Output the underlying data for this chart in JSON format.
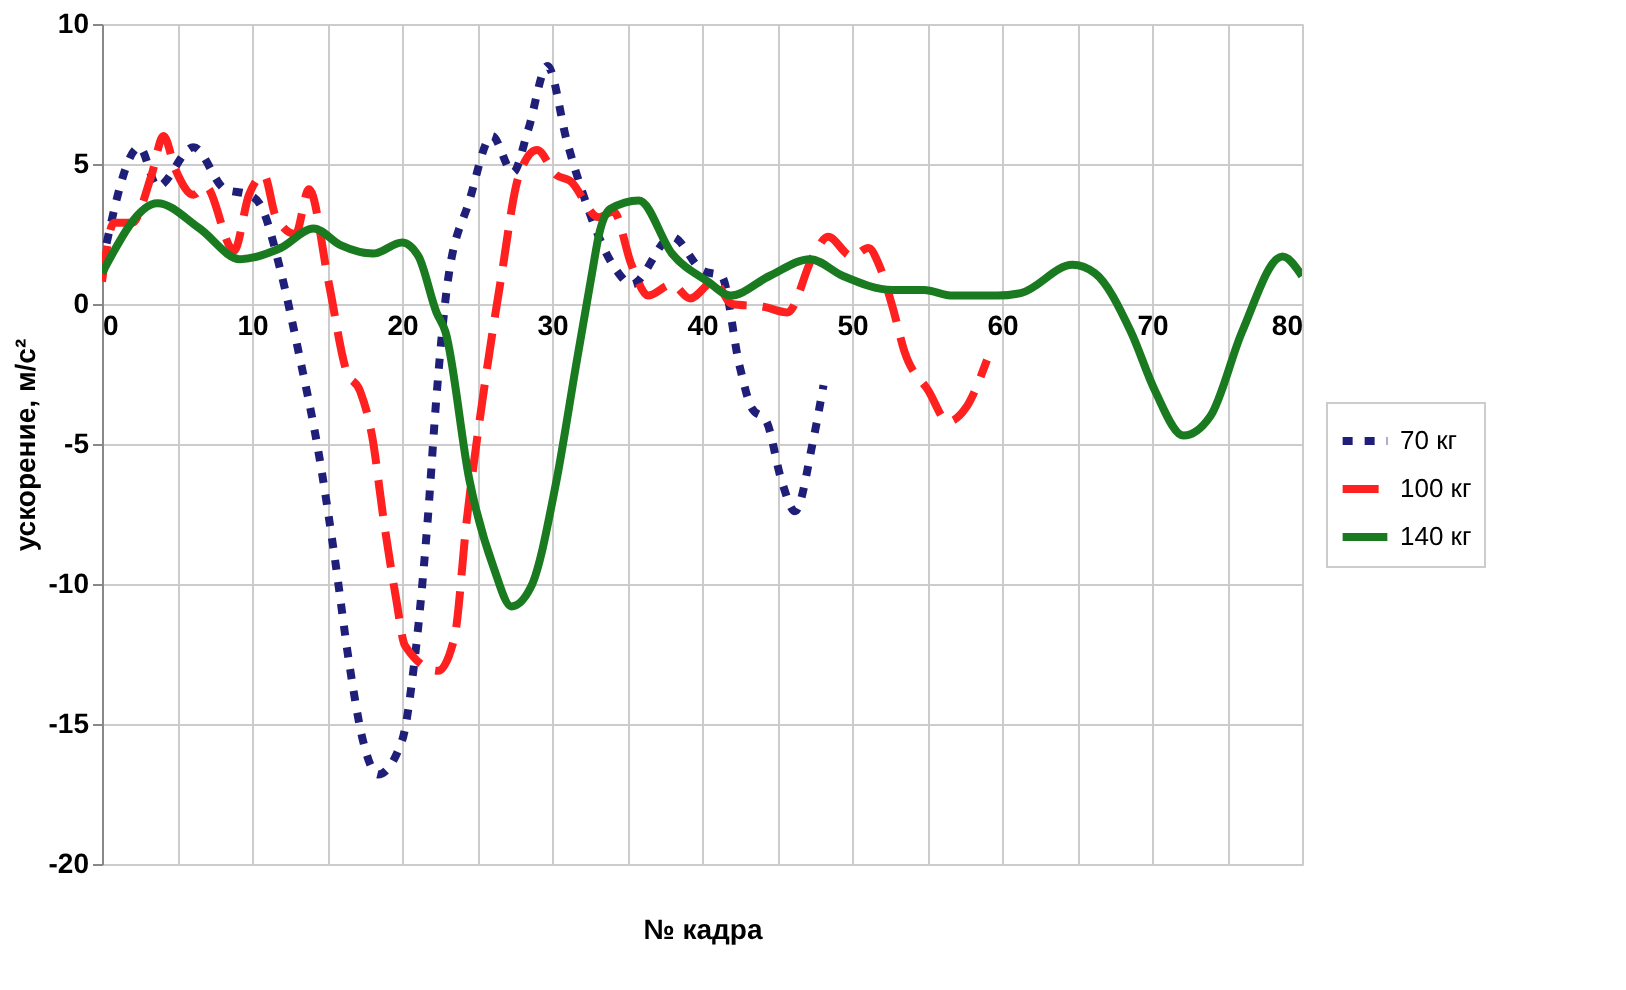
{
  "chart_data": {
    "type": "line",
    "xlabel": "№ кадра",
    "ylabel": "ускорение, м/с²",
    "xlim": [
      0,
      80
    ],
    "ylim": [
      -20,
      10
    ],
    "xticks": [
      0,
      {
        "value": 5,
        "label": null
      },
      10,
      {
        "value": 15,
        "label": null
      },
      20,
      {
        "value": 25,
        "label": null
      },
      30,
      {
        "value": 35,
        "label": null
      },
      40,
      {
        "value": 45,
        "label": null
      },
      50,
      {
        "value": 55,
        "label": null
      },
      60,
      {
        "value": 65,
        "label": null
      },
      70,
      {
        "value": 75,
        "label": null
      },
      80
    ],
    "yticks": [
      -20,
      -15,
      -10,
      -5,
      0,
      5,
      10
    ],
    "grid": true,
    "legend": "right",
    "marker": "none",
    "series": [
      {
        "name": "70 кг",
        "color": "#1f1f7a",
        "line_style": "dotted",
        "x": [
          0,
          2.5,
          3.7,
          6.1,
          8.2,
          9.8,
          10.6,
          11.9,
          13.1,
          14.5,
          15.5,
          16.5,
          17.4,
          18.4,
          20,
          20.8,
          21.7,
          22.3,
          23,
          24.5,
          26,
          27.4,
          28.4,
          29.7,
          31,
          31.9,
          34.3,
          35.3,
          38,
          40,
          41.3,
          42.5,
          43.3,
          44.3,
          45.3,
          46.2,
          47.4,
          48.1
        ],
        "values": [
          1.4,
          5.6,
          4.2,
          5.6,
          4.1,
          3.9,
          3.5,
          1.2,
          -1.7,
          -5.5,
          -9,
          -12.9,
          -15.6,
          -16.8,
          -15.6,
          -12.9,
          -7.8,
          -3.3,
          0.6,
          3.7,
          6,
          4.7,
          6.2,
          8.5,
          5.8,
          4.2,
          1.2,
          0.7,
          2.4,
          1.2,
          1,
          -2.2,
          -3.7,
          -4.2,
          -6.3,
          -7.4,
          -4.9,
          -2.9
        ]
      },
      {
        "name": "100 кг",
        "color": "#ff2020",
        "line_style": "dashed",
        "x": [
          0,
          0.8,
          2,
          3.3,
          4.1,
          4.9,
          6.1,
          6.9,
          8.8,
          9.8,
          10.8,
          11.6,
          12.9,
          13.8,
          15.1,
          16.3,
          17.2,
          18,
          18.8,
          19.6,
          20.2,
          22.4,
          23.5,
          24.3,
          25.4,
          26.6,
          27.8,
          29,
          30.3,
          31.2,
          33.1,
          34.1,
          35.3,
          36.4,
          38,
          39.2,
          40.8,
          42,
          44.1,
          45.7,
          47.4,
          48.4,
          50,
          51.1,
          51.8,
          52.7,
          53.5,
          55.1,
          56.4,
          57.6,
          59
        ],
        "values": [
          0.8,
          2.9,
          2.9,
          4.6,
          6,
          4.8,
          3.9,
          4.2,
          1.9,
          3.9,
          4.6,
          3.1,
          2.5,
          4.1,
          0.8,
          -2.4,
          -3.1,
          -4.7,
          -7.8,
          -10.5,
          -12.2,
          -13.1,
          -11.9,
          -7.8,
          -3.3,
          0.9,
          4.6,
          5.5,
          4.6,
          4.4,
          3.1,
          3.3,
          1.4,
          0.3,
          0.7,
          0.2,
          0.8,
          0,
          -0.1,
          -0.3,
          1.7,
          2.4,
          1.7,
          2,
          1.4,
          -0.1,
          -1.7,
          -3.1,
          -4.2,
          -3.7,
          -2
        ]
      },
      {
        "name": "140 кг",
        "color": "#1a7a20",
        "line_style": "solid",
        "x": [
          0,
          3.7,
          6.5,
          9.2,
          11.9,
          14.1,
          15.9,
          18.1,
          20,
          21.1,
          22.3,
          22.9,
          24.5,
          26.1,
          27.3,
          28.6,
          30.3,
          31.6,
          32.7,
          33.1,
          33.9,
          35.8,
          38,
          40.4,
          41.9,
          44.5,
          47.2,
          49.4,
          52.7,
          54.8,
          56.7,
          59.7,
          61.3,
          64.7,
          66.2,
          68.6,
          70.2,
          72.1,
          73.9,
          76,
          78.7,
          80
        ],
        "values": [
          1.1,
          3.6,
          2.7,
          1.6,
          2,
          2.7,
          2.1,
          1.8,
          2.2,
          1.7,
          -0.3,
          -1,
          -6.3,
          -9.4,
          -10.8,
          -10.1,
          -6.3,
          -2.2,
          1.2,
          2.4,
          3.4,
          3.7,
          1.8,
          0.8,
          0.3,
          1,
          1.6,
          1,
          0.5,
          0.5,
          0.3,
          0.3,
          0.4,
          1.4,
          1.1,
          -1,
          -3.1,
          -4.7,
          -4,
          -1,
          1.7,
          1
        ]
      }
    ]
  }
}
